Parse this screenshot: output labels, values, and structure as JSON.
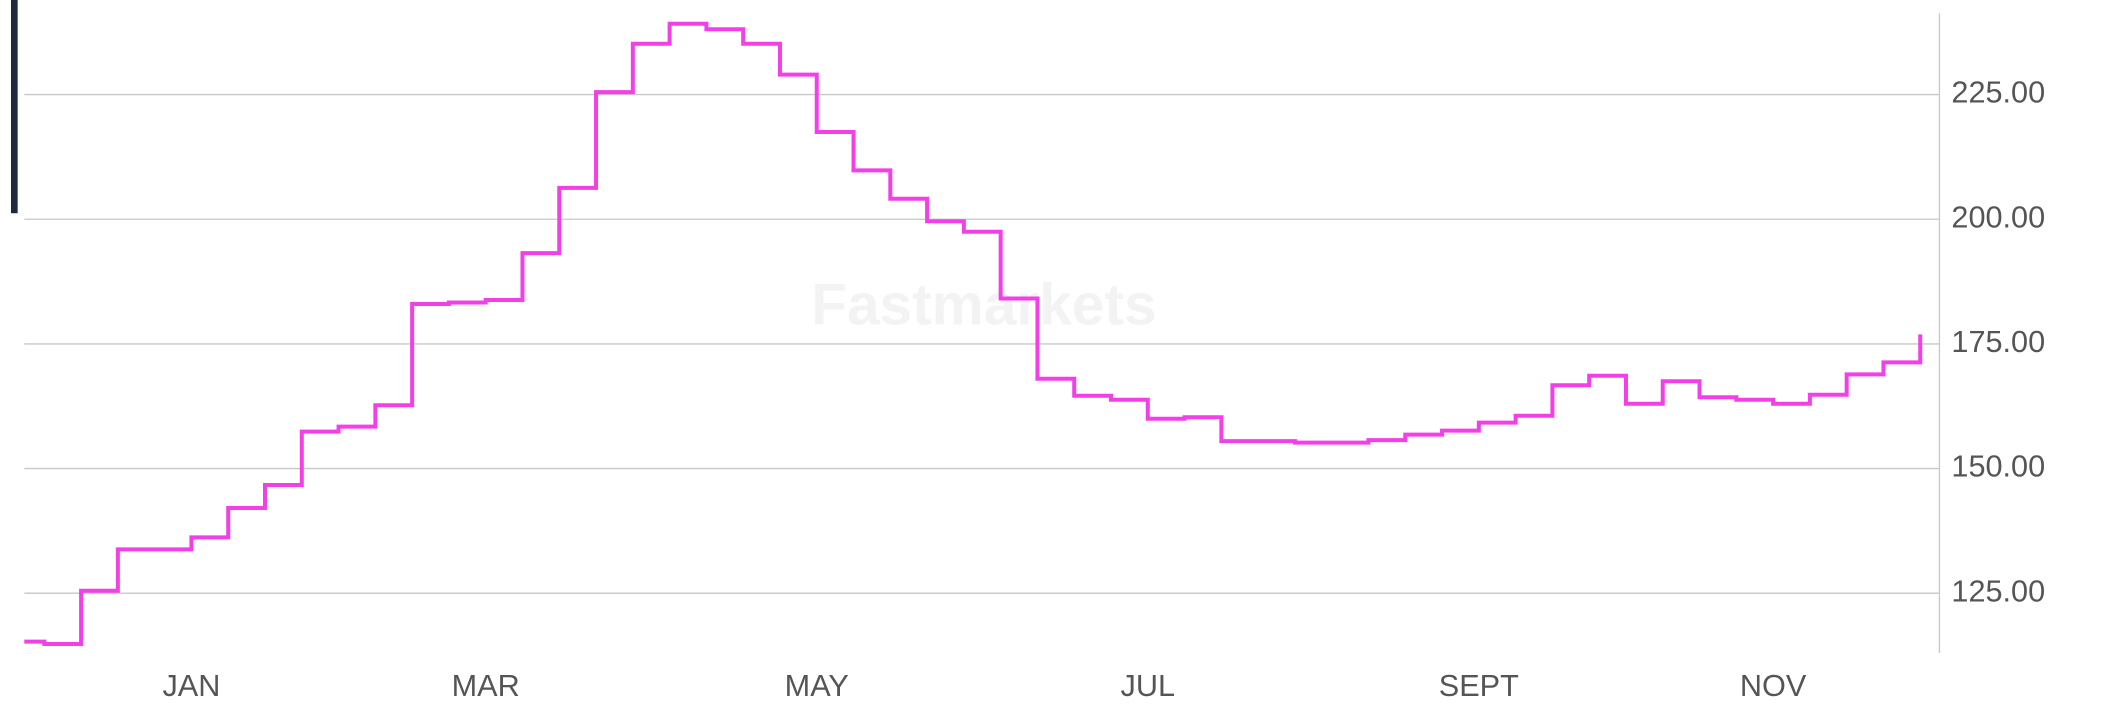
{
  "chart_data": {
    "type": "line",
    "watermark": "Fastmarkets",
    "categories": [
      null,
      null,
      null,
      null,
      null,
      "JAN",
      null,
      null,
      null,
      null,
      null,
      null,
      null,
      "MAR",
      null,
      null,
      null,
      null,
      null,
      null,
      null,
      null,
      "MAY",
      null,
      null,
      null,
      null,
      null,
      null,
      null,
      null,
      "JUL",
      null,
      null,
      null,
      null,
      null,
      null,
      null,
      null,
      "SEPT",
      null,
      null,
      null,
      null,
      null,
      null,
      null,
      "NOV",
      null,
      null,
      null,
      null
    ],
    "series": [
      {
        "color": "#f23fe8",
        "values": [
          115.3,
          114.8,
          125.5,
          133.8,
          133.8,
          136.2,
          142.1,
          146.7,
          157.4,
          158.4,
          162.7,
          183.0,
          183.3,
          183.8,
          193.2,
          206.3,
          225.5,
          235.2,
          239.2,
          238.1,
          235.2,
          229.0,
          217.5,
          209.8,
          204.1,
          199.6,
          197.5,
          184.1,
          168.0,
          164.6,
          163.8,
          160.0,
          160.3,
          155.5,
          155.5,
          155.2,
          155.2,
          155.7,
          156.8,
          157.6,
          159.2,
          160.6,
          166.7,
          168.6,
          163.0,
          167.5,
          164.3,
          163.8,
          163.0,
          164.8,
          168.9,
          171.3,
          176.9
        ]
      }
    ],
    "step": true,
    "ylim": [
      113,
      241.3
    ],
    "yticks": [
      {
        "value": 125,
        "label": "125.00"
      },
      {
        "value": 150,
        "label": "150.00"
      },
      {
        "value": 175,
        "label": "175.00"
      },
      {
        "value": 200,
        "label": "200.00"
      },
      {
        "value": 225,
        "label": "225.00"
      }
    ],
    "y_axis_side": "right",
    "grid": true
  }
}
